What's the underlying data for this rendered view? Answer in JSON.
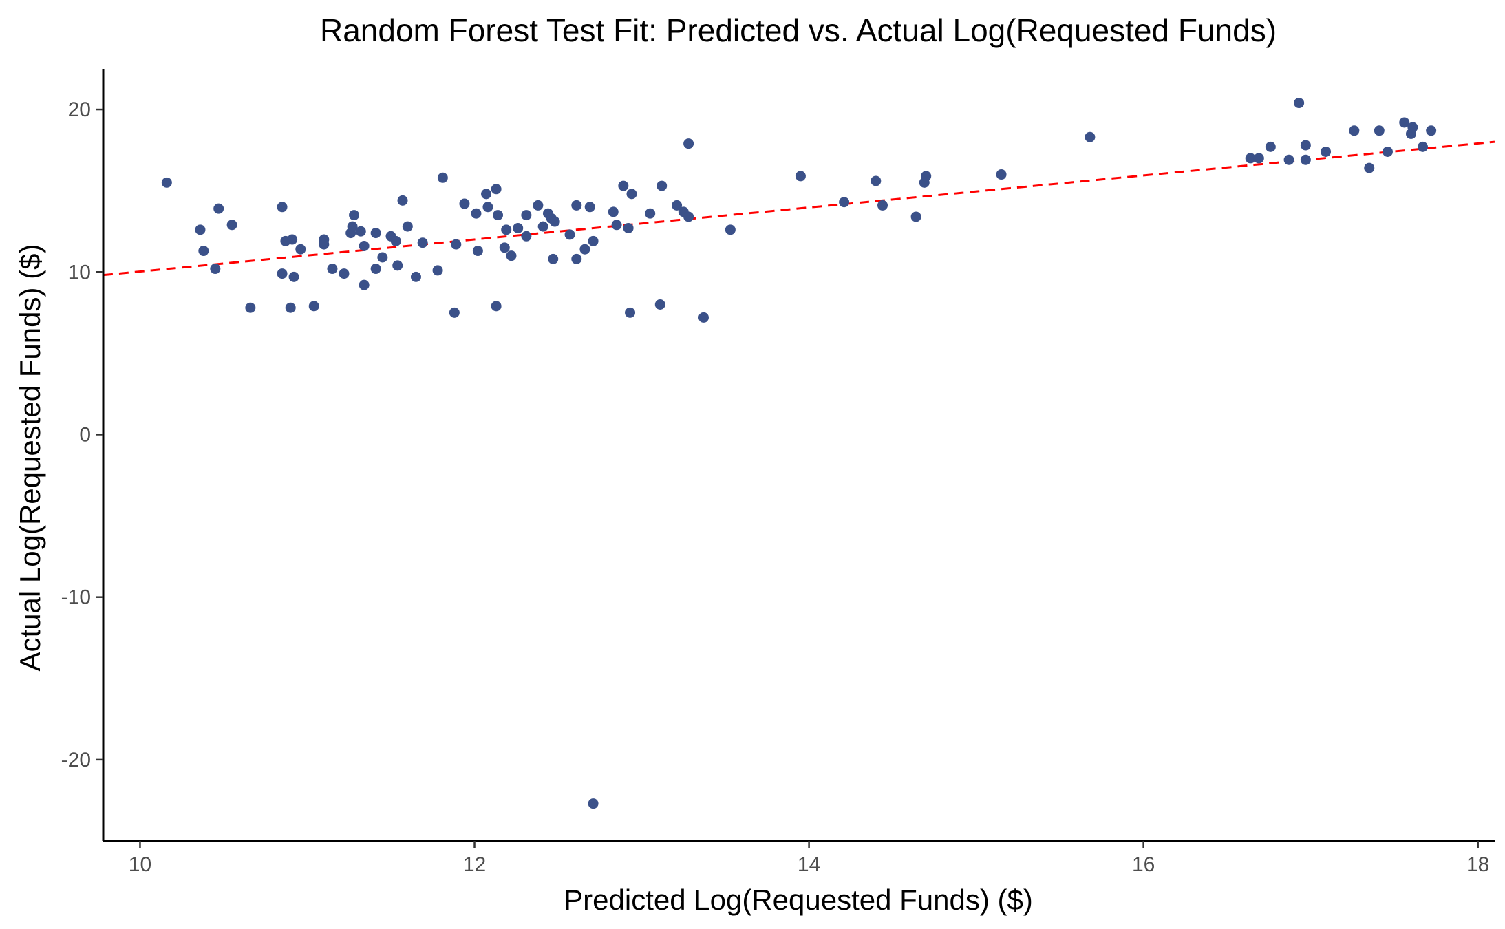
{
  "chart_data": {
    "type": "scatter",
    "title": "Random Forest Test Fit: Predicted vs. Actual Log(Requested Funds)",
    "xlabel": "Predicted Log(Requested Funds) ($)",
    "ylabel": "Actual Log(Requested Funds) ($)",
    "xlim": [
      9.78,
      18.1
    ],
    "ylim": [
      -25.0,
      22.5
    ],
    "x_ticks": [
      10,
      12,
      14,
      16,
      18
    ],
    "x_tick_labels": [
      "10",
      "12",
      "14",
      "16",
      "18"
    ],
    "y_ticks": [
      -20,
      -10,
      0,
      10,
      20
    ],
    "y_tick_labels": [
      "-20",
      "-10",
      "0",
      "10",
      "20"
    ],
    "grid": false,
    "legend": "none",
    "point_color": "#3b5189",
    "reference_line": {
      "style": "dashed",
      "color": "#ff0000",
      "intercept": 0.18,
      "slope": 0.985
    },
    "points": [
      [
        10.16,
        15.5
      ],
      [
        10.36,
        12.6
      ],
      [
        10.38,
        11.3
      ],
      [
        10.45,
        10.2
      ],
      [
        10.47,
        13.9
      ],
      [
        10.55,
        12.9
      ],
      [
        10.66,
        7.8
      ],
      [
        10.85,
        14.0
      ],
      [
        10.85,
        9.9
      ],
      [
        10.87,
        11.9
      ],
      [
        10.9,
        7.8
      ],
      [
        10.91,
        12.0
      ],
      [
        10.92,
        9.7
      ],
      [
        10.96,
        11.4
      ],
      [
        11.04,
        7.9
      ],
      [
        11.1,
        12.0
      ],
      [
        11.1,
        11.7
      ],
      [
        11.15,
        10.2
      ],
      [
        11.22,
        9.9
      ],
      [
        11.26,
        12.4
      ],
      [
        11.27,
        12.8
      ],
      [
        11.28,
        13.5
      ],
      [
        11.32,
        12.5
      ],
      [
        11.34,
        11.6
      ],
      [
        11.34,
        9.2
      ],
      [
        11.41,
        12.4
      ],
      [
        11.41,
        10.2
      ],
      [
        11.45,
        10.9
      ],
      [
        11.5,
        12.2
      ],
      [
        11.53,
        11.9
      ],
      [
        11.54,
        10.4
      ],
      [
        11.57,
        14.4
      ],
      [
        11.6,
        12.8
      ],
      [
        11.65,
        9.7
      ],
      [
        11.69,
        11.8
      ],
      [
        11.78,
        10.1
      ],
      [
        11.81,
        15.8
      ],
      [
        11.88,
        7.5
      ],
      [
        11.89,
        11.7
      ],
      [
        11.94,
        14.2
      ],
      [
        12.01,
        13.6
      ],
      [
        12.02,
        11.3
      ],
      [
        12.07,
        14.8
      ],
      [
        12.08,
        14.0
      ],
      [
        12.13,
        15.1
      ],
      [
        12.13,
        7.9
      ],
      [
        12.14,
        13.5
      ],
      [
        12.18,
        11.5
      ],
      [
        12.19,
        12.6
      ],
      [
        12.22,
        11.0
      ],
      [
        12.26,
        12.7
      ],
      [
        12.31,
        13.5
      ],
      [
        12.31,
        12.2
      ],
      [
        12.38,
        14.1
      ],
      [
        12.41,
        12.8
      ],
      [
        12.44,
        13.6
      ],
      [
        12.46,
        13.3
      ],
      [
        12.47,
        10.8
      ],
      [
        12.48,
        13.1
      ],
      [
        12.57,
        12.3
      ],
      [
        12.61,
        14.1
      ],
      [
        12.61,
        10.8
      ],
      [
        12.66,
        11.4
      ],
      [
        12.69,
        14.0
      ],
      [
        12.71,
        11.9
      ],
      [
        12.71,
        -22.7
      ],
      [
        12.83,
        13.7
      ],
      [
        12.85,
        12.9
      ],
      [
        12.89,
        15.3
      ],
      [
        12.92,
        12.7
      ],
      [
        12.93,
        7.5
      ],
      [
        12.94,
        14.8
      ],
      [
        13.05,
        13.6
      ],
      [
        13.11,
        8.0
      ],
      [
        13.12,
        15.3
      ],
      [
        13.21,
        14.1
      ],
      [
        13.25,
        13.7
      ],
      [
        13.28,
        17.9
      ],
      [
        13.28,
        13.4
      ],
      [
        13.37,
        7.2
      ],
      [
        13.53,
        12.6
      ],
      [
        13.95,
        15.9
      ],
      [
        14.21,
        14.3
      ],
      [
        14.4,
        15.6
      ],
      [
        14.44,
        14.1
      ],
      [
        14.64,
        13.4
      ],
      [
        14.69,
        15.5
      ],
      [
        14.7,
        15.9
      ],
      [
        15.15,
        16.0
      ],
      [
        15.68,
        18.3
      ],
      [
        16.64,
        17.0
      ],
      [
        16.69,
        17.0
      ],
      [
        16.76,
        17.7
      ],
      [
        16.87,
        16.9
      ],
      [
        16.93,
        20.4
      ],
      [
        16.97,
        17.8
      ],
      [
        16.97,
        16.9
      ],
      [
        17.09,
        17.4
      ],
      [
        17.26,
        18.7
      ],
      [
        17.35,
        16.4
      ],
      [
        17.41,
        18.7
      ],
      [
        17.46,
        17.4
      ],
      [
        17.56,
        19.2
      ],
      [
        17.6,
        18.5
      ],
      [
        17.61,
        18.9
      ],
      [
        17.67,
        17.7
      ],
      [
        17.72,
        18.7
      ]
    ]
  }
}
